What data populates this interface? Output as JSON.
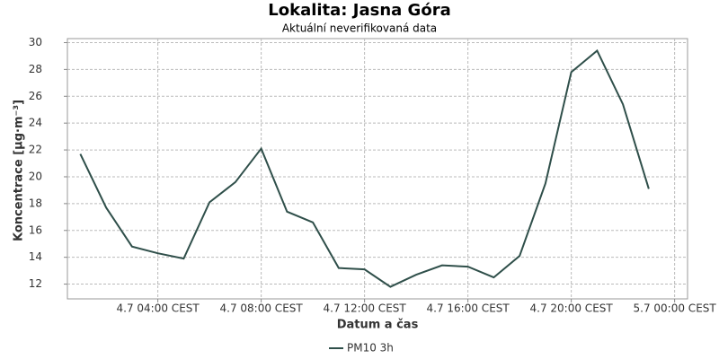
{
  "chart_data": {
    "type": "line",
    "title": "Lokalita: Jasna Góra",
    "subtitle": "Aktuální neverifikovaná data",
    "x_label": "Datum a čas",
    "y_label": "Koncentrace [µg·m⁻³]",
    "x": [
      "4.7 01:00 CEST",
      "4.7 02:00 CEST",
      "4.7 03:00 CEST",
      "4.7 04:00 CEST",
      "4.7 05:00 CEST",
      "4.7 06:00 CEST",
      "4.7 07:00 CEST",
      "4.7 08:00 CEST",
      "4.7 09:00 CEST",
      "4.7 10:00 CEST",
      "4.7 11:00 CEST",
      "4.7 12:00 CEST",
      "4.7 13:00 CEST",
      "4.7 14:00 CEST",
      "4.7 15:00 CEST",
      "4.7 16:00 CEST",
      "4.7 17:00 CEST",
      "4.7 18:00 CEST",
      "4.7 19:00 CEST",
      "4.7 20:00 CEST",
      "4.7 21:00 CEST",
      "4.7 22:00 CEST",
      "4.7 23:00 CEST"
    ],
    "series": [
      {
        "name": "PM10 3h",
        "color": "#2f4f4a",
        "values": [
          21.7,
          17.7,
          14.8,
          14.3,
          13.9,
          18.1,
          19.6,
          22.1,
          17.4,
          16.6,
          13.2,
          13.1,
          11.8,
          12.7,
          13.4,
          13.3,
          12.5,
          14.1,
          19.5,
          27.8,
          29.4,
          25.4,
          19.1
        ]
      }
    ],
    "xlim": [
      "4.7 00:30 CEST",
      "5.7 00:30 CEST"
    ],
    "xticks": [
      "4.7 04:00 CEST",
      "4.7 08:00 CEST",
      "4.7 12:00 CEST",
      "4.7 16:00 CEST",
      "4.7 20:00 CEST",
      "5.7 00:00 CEST"
    ],
    "ylim": [
      10.9,
      30.3
    ],
    "yticks": [
      12,
      14,
      16,
      18,
      20,
      22,
      24,
      26,
      28,
      30
    ],
    "grid": true,
    "legend": "bottom"
  }
}
